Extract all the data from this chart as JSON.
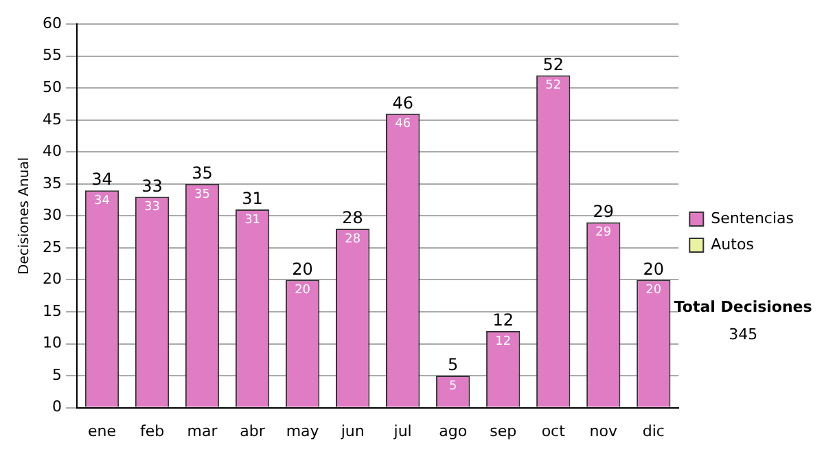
{
  "chart_data": {
    "type": "bar",
    "categories": [
      "ene",
      "feb",
      "mar",
      "abr",
      "may",
      "jun",
      "jul",
      "ago",
      "sep",
      "oct",
      "nov",
      "dic"
    ],
    "series": [
      {
        "name": "Sentencias",
        "color": "#e07cc4",
        "values": [
          34,
          33,
          35,
          31,
          20,
          28,
          46,
          5,
          12,
          52,
          29,
          20
        ],
        "value_labels": [
          "34",
          "33",
          "35",
          "31",
          "20",
          "28",
          "46",
          "5",
          "12",
          "52",
          "29",
          "20"
        ]
      },
      {
        "name": "Autos",
        "color": "#e8f2a0",
        "values": [
          null,
          null,
          null,
          null,
          null,
          null,
          null,
          null,
          null,
          null,
          null,
          null
        ]
      }
    ],
    "stacked": true,
    "totals": [
      "34",
      "33",
      "35",
      "31",
      "20",
      "28",
      "46",
      "5",
      "12",
      "52",
      "29",
      "20"
    ],
    "ylabel": "Decisiones Anual",
    "ylim": [
      0,
      60
    ],
    "yticks": [
      0,
      5,
      10,
      15,
      20,
      25,
      30,
      35,
      40,
      45,
      50,
      55,
      60
    ],
    "grid": "y",
    "legend": "right",
    "annotations": [
      "Total Decisiones",
      "345"
    ]
  }
}
